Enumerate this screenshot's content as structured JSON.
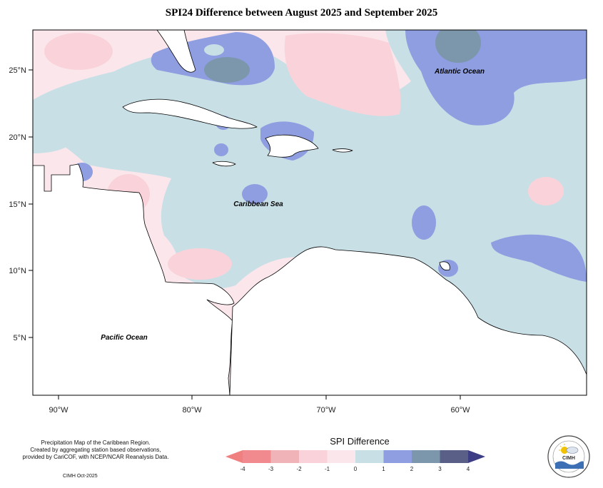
{
  "map": {
    "title": "SPI24 Difference between August 2025 and September 2025",
    "x_ticks": [
      "90°W",
      "80°W",
      "70°W",
      "60°W"
    ],
    "y_ticks": [
      "25°N",
      "20°N",
      "15°N",
      "10°N",
      "5°N"
    ],
    "region_labels": {
      "atlantic": "Atlantic Ocean",
      "caribbean": "Caribbean Sea",
      "pacific": "Pacific Ocean"
    }
  },
  "legend": {
    "title": "SPI Difference",
    "ticks": [
      "-4",
      "-3",
      "-2",
      "-1",
      "0",
      "1",
      "2",
      "3",
      "4"
    ],
    "colors": [
      "#f08a8e",
      "#f0b4b8",
      "#fad3da",
      "#fbe7eb",
      "#c9dfe6",
      "#8e9ee0",
      "#7c97ac",
      "#5a5f87"
    ],
    "arrow_low_color": "#f08080",
    "arrow_high_color": "#3d3d86"
  },
  "footer": {
    "line1": "Precipitation Map of the Caribbean Region.",
    "line2": "Created by aggregating station based observations,",
    "line3": "provided by CariCOF, with NCEP/NCAR Reanalysis Data.",
    "credit": "CIMH Oct-2025",
    "logo_text": "CIMH"
  }
}
